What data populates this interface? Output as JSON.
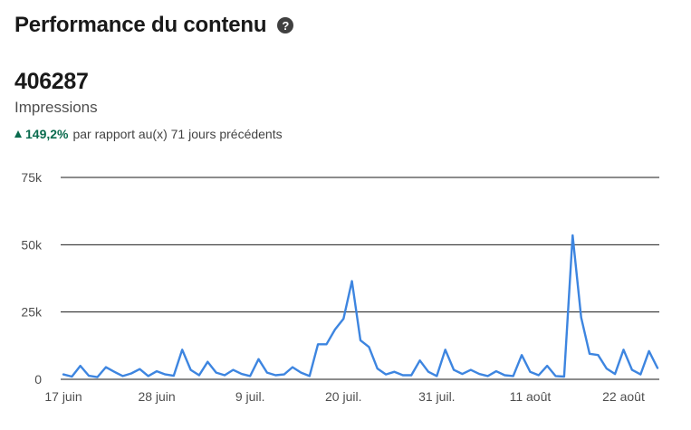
{
  "header": {
    "title": "Performance du contenu",
    "help_icon": "question-circle-icon"
  },
  "metric": {
    "value": "406287",
    "label": "Impressions"
  },
  "change": {
    "value": "149,2%",
    "text": "par rapport au(x) 71 jours précédents",
    "direction": "up",
    "color": "#0a6b4e"
  },
  "chart_data": {
    "type": "line",
    "line_color": "#3d85e0",
    "grid": true,
    "ylim": [
      0,
      75000
    ],
    "yticks": [
      0,
      25000,
      50000,
      75000
    ],
    "ytick_labels": [
      "0",
      "25k",
      "50k",
      "75k"
    ],
    "xtick_labels": [
      "17 juin",
      "28 juin",
      "9 juil.",
      "20 juil.",
      "31 juil.",
      "11 août",
      "22 août"
    ],
    "xtick_index": [
      0,
      11,
      22,
      33,
      44,
      55,
      66
    ],
    "series": [
      {
        "values": [
          1800,
          1000,
          5000,
          1300,
          800,
          4500,
          2800,
          1200,
          2200,
          3800,
          1200,
          3000,
          1800,
          1300,
          11000,
          3500,
          1500,
          6500,
          2500,
          1500,
          3500,
          2000,
          1200,
          7500,
          2500,
          1500,
          1800,
          4500,
          2500,
          1200,
          13000,
          13000,
          18500,
          22500,
          36500,
          14500,
          12000,
          4000,
          1800,
          2800,
          1500,
          1500,
          7000,
          2800,
          1200,
          11000,
          3500,
          2000,
          3500,
          2000,
          1200,
          3000,
          1500,
          1200,
          9000,
          2800,
          1500,
          5000,
          1200,
          1000,
          53500,
          23000,
          9500,
          9000,
          4000,
          2000,
          11000,
          3500,
          1800,
          10500,
          4200
        ]
      }
    ]
  }
}
